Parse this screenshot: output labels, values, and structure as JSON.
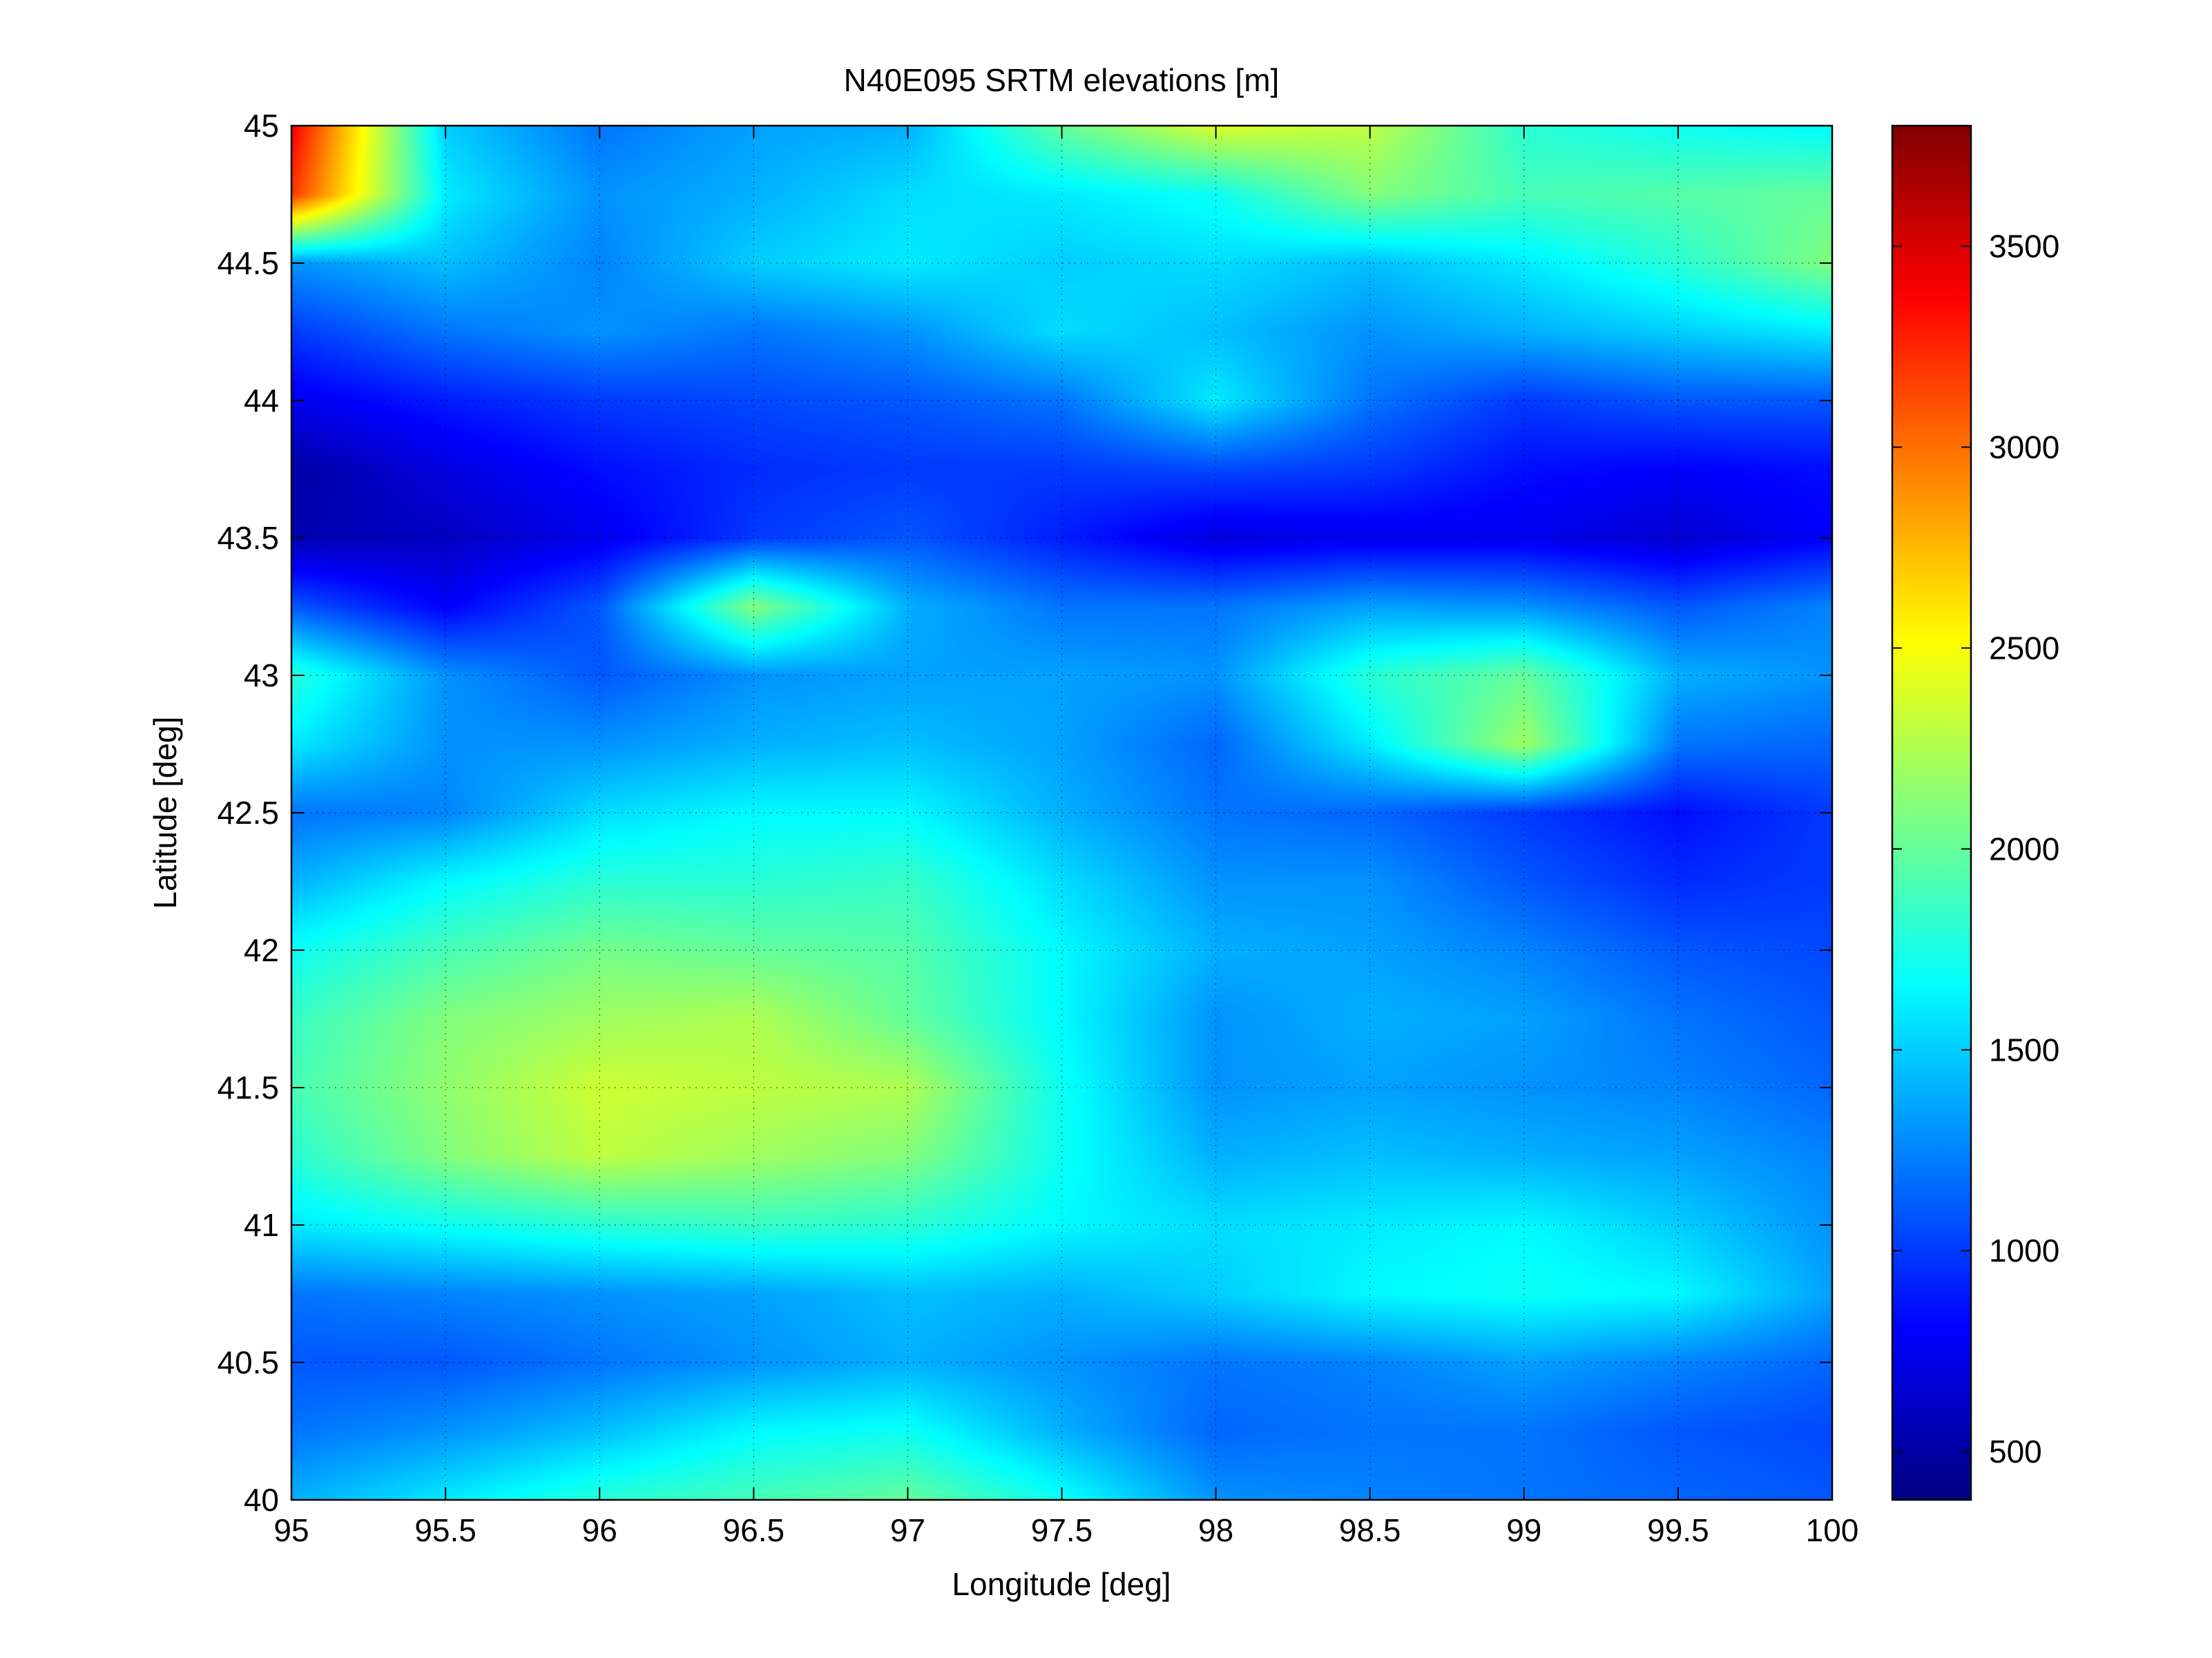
{
  "chart_data": {
    "type": "heatmap",
    "title": "N40E095 SRTM elevations [m]",
    "xlabel": "Longitude [deg]",
    "ylabel": "Latitude [deg]",
    "xlim": [
      95,
      100
    ],
    "ylim": [
      40,
      45
    ],
    "xticks": [
      95,
      95.5,
      96,
      96.5,
      97,
      97.5,
      98,
      98.5,
      99,
      99.5,
      100
    ],
    "xtick_labels": [
      "95",
      "95.5",
      "96",
      "96.5",
      "97",
      "97.5",
      "98",
      "98.5",
      "99",
      "99.5",
      "100"
    ],
    "yticks": [
      40,
      40.5,
      41,
      41.5,
      42,
      42.5,
      43,
      43.5,
      44,
      44.5,
      45
    ],
    "ytick_labels": [
      "40",
      "40.5",
      "41",
      "41.5",
      "42",
      "42.5",
      "43",
      "43.5",
      "44",
      "44.5",
      "45"
    ],
    "grid": true,
    "colormap": "jet",
    "colorbar": {
      "clim": [
        380,
        3800
      ],
      "ticks": [
        500,
        1000,
        1500,
        2000,
        2500,
        3000,
        3500
      ],
      "tick_labels": [
        "500",
        "1000",
        "1500",
        "2000",
        "2500",
        "3000",
        "3500"
      ]
    },
    "elevation_grid": {
      "longitudes": [
        95,
        95.5,
        96,
        96.5,
        97,
        97.5,
        98,
        98.5,
        99,
        99.5,
        100
      ],
      "latitudes": [
        45,
        44.75,
        44.5,
        44.25,
        44,
        43.75,
        43.5,
        43.25,
        43,
        42.75,
        42.5,
        42.25,
        42,
        41.75,
        41.5,
        41.25,
        41,
        40.75,
        40.5,
        40.25,
        40
      ],
      "values": [
        [
          3400,
          1500,
          1200,
          1350,
          1400,
          2000,
          2400,
          2300,
          1800,
          1700,
          1650
        ],
        [
          3200,
          1600,
          1300,
          1400,
          1550,
          1600,
          1700,
          2100,
          1900,
          1950,
          2000
        ],
        [
          1300,
          1450,
          1250,
          1500,
          1600,
          1500,
          1550,
          1450,
          1600,
          1800,
          2100
        ],
        [
          1000,
          1200,
          1300,
          1200,
          1300,
          1550,
          1450,
          1300,
          1400,
          1500,
          1600
        ],
        [
          750,
          900,
          1000,
          1050,
          1100,
          1200,
          1600,
          1200,
          1000,
          1100,
          1100
        ],
        [
          500,
          700,
          850,
          950,
          1000,
          1000,
          1050,
          1000,
          850,
          800,
          850
        ],
        [
          550,
          600,
          750,
          1000,
          1100,
          900,
          700,
          750,
          750,
          650,
          800
        ],
        [
          1100,
          800,
          1100,
          2100,
          1400,
          1200,
          1200,
          1350,
          1300,
          1100,
          1250
        ],
        [
          1800,
          1300,
          1100,
          1300,
          1350,
          1350,
          1300,
          1800,
          2000,
          1400,
          1300
        ],
        [
          1600,
          1300,
          1300,
          1400,
          1450,
          1350,
          1150,
          1600,
          2200,
          1200,
          1150
        ],
        [
          1200,
          1250,
          1550,
          1650,
          1650,
          1400,
          1200,
          1150,
          1000,
          850,
          1000
        ],
        [
          1400,
          1650,
          1800,
          1800,
          1850,
          1550,
          1300,
          1300,
          1100,
          950,
          1000
        ],
        [
          1700,
          1900,
          2050,
          2000,
          1950,
          1650,
          1400,
          1350,
          1250,
          1100,
          1050
        ],
        [
          1850,
          2100,
          2200,
          2250,
          2000,
          1650,
          1300,
          1400,
          1350,
          1200,
          1100
        ],
        [
          1900,
          2150,
          2350,
          2300,
          2250,
          1700,
          1300,
          1350,
          1300,
          1250,
          1150
        ],
        [
          1800,
          2100,
          2300,
          2200,
          2100,
          1700,
          1400,
          1450,
          1400,
          1350,
          1250
        ],
        [
          1600,
          1700,
          1800,
          1850,
          1800,
          1650,
          1550,
          1600,
          1650,
          1500,
          1300
        ],
        [
          1200,
          1250,
          1300,
          1350,
          1450,
          1400,
          1500,
          1650,
          1700,
          1650,
          1350
        ],
        [
          1100,
          1100,
          1200,
          1300,
          1400,
          1300,
          1200,
          1250,
          1350,
          1250,
          1150
        ],
        [
          1200,
          1300,
          1450,
          1650,
          1700,
          1400,
          1150,
          1200,
          1200,
          1100,
          1050
        ],
        [
          1400,
          1600,
          1800,
          1900,
          2000,
          1700,
          1300,
          1250,
          1200,
          1150,
          1100
        ]
      ]
    }
  }
}
